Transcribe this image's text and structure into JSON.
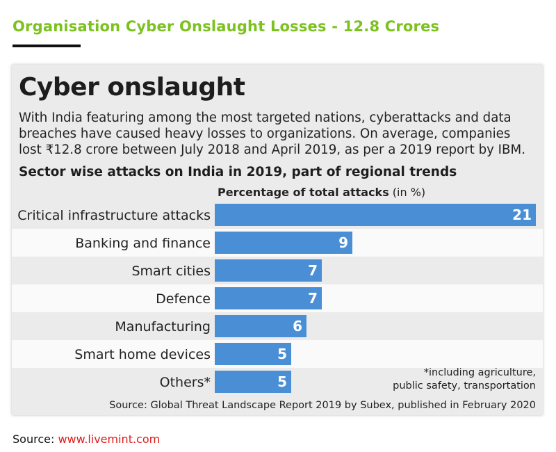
{
  "page": {
    "title": "Organisation Cyber Onslaught Losses - 12.8 Crores",
    "source_label": "Source: ",
    "source_link": "www.livemint.com",
    "accent_color": "#7cc21e",
    "link_color": "#e01a1a"
  },
  "card": {
    "title": "Cyber onslaught",
    "intro_lines": [
      "With India featuring among the most targeted nations, cyberattacks and data",
      "breaches have caused heavy losses to organizations. On average, companies",
      "lost ₹12.8 crore between July 2018 and April 2019, as per a 2019 report by IBM."
    ],
    "subheading": "Sector wise attacks on India in 2019, part of regional trends",
    "axis_caption_bold": "Percentage of total attacks",
    "axis_caption_unit": " (in %)",
    "footnote_lines": [
      "*including agriculture,",
      "public safety, transportation"
    ],
    "source_note": "Source: Global Threat Landscape Report 2019 by Subex, published in February 2020"
  },
  "chart_data": {
    "type": "bar",
    "orientation": "horizontal",
    "title": "Sector wise attacks on India in 2019, part of regional trends",
    "xlabel": "Percentage of total attacks (in %)",
    "categories": [
      "Critical infrastructure attacks",
      "Banking and finance",
      "Smart cities",
      "Defence",
      "Manufacturing",
      "Smart home devices",
      "Others*"
    ],
    "values": [
      21,
      9,
      7,
      7,
      6,
      5,
      5
    ],
    "xlim": [
      0,
      21
    ],
    "bar_color": "#4a8fd6",
    "stripe_colors": [
      "#ebebeb",
      "#fafafa"
    ]
  }
}
